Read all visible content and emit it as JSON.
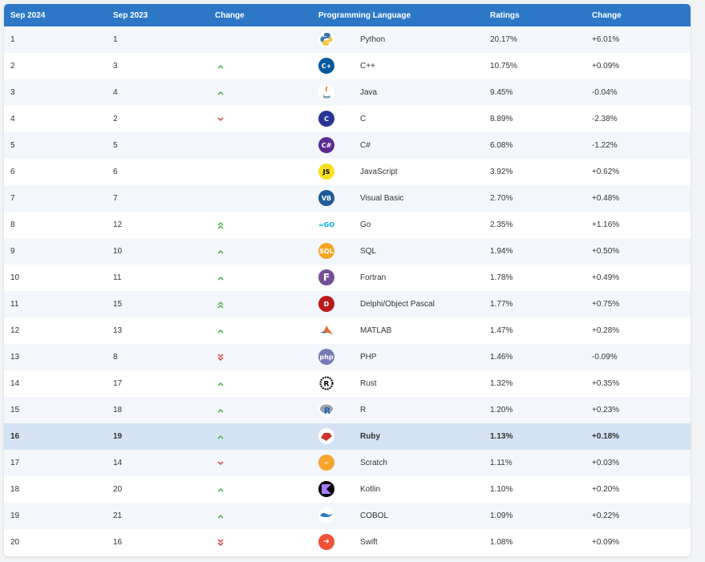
{
  "header": {
    "col1": "Sep 2024",
    "col2": "Sep 2023",
    "col3": "Change",
    "col4": "Programming Language",
    "col5": "Ratings",
    "col6": "Change"
  },
  "colors": {
    "header_bg": "#2d78c6",
    "up": "#5cb85c",
    "down": "#d9534f",
    "highlight_row": "#d3e3f4"
  },
  "rows": [
    {
      "rank": "1",
      "prev": "1",
      "change": "none",
      "language": "Python",
      "icon": "python-icon",
      "rating": "20.17%",
      "delta": "+6.01%"
    },
    {
      "rank": "2",
      "prev": "3",
      "change": "up",
      "language": "C++",
      "icon": "cplusplus-icon",
      "rating": "10.75%",
      "delta": "+0.09%"
    },
    {
      "rank": "3",
      "prev": "4",
      "change": "up",
      "language": "Java",
      "icon": "java-icon",
      "rating": "9.45%",
      "delta": "-0.04%"
    },
    {
      "rank": "4",
      "prev": "2",
      "change": "down",
      "language": "C",
      "icon": "c-icon",
      "rating": "8.89%",
      "delta": "-2.38%"
    },
    {
      "rank": "5",
      "prev": "5",
      "change": "none",
      "language": "C#",
      "icon": "csharp-icon",
      "rating": "6.08%",
      "delta": "-1.22%"
    },
    {
      "rank": "6",
      "prev": "6",
      "change": "none",
      "language": "JavaScript",
      "icon": "javascript-icon",
      "rating": "3.92%",
      "delta": "+0.62%"
    },
    {
      "rank": "7",
      "prev": "7",
      "change": "none",
      "language": "Visual Basic",
      "icon": "visual-basic-icon",
      "rating": "2.70%",
      "delta": "+0.48%"
    },
    {
      "rank": "8",
      "prev": "12",
      "change": "up2",
      "language": "Go",
      "icon": "go-icon",
      "rating": "2.35%",
      "delta": "+1.16%"
    },
    {
      "rank": "9",
      "prev": "10",
      "change": "up",
      "language": "SQL",
      "icon": "sql-icon",
      "rating": "1.94%",
      "delta": "+0.50%"
    },
    {
      "rank": "10",
      "prev": "11",
      "change": "up",
      "language": "Fortran",
      "icon": "fortran-icon",
      "rating": "1.78%",
      "delta": "+0.49%"
    },
    {
      "rank": "11",
      "prev": "15",
      "change": "up2",
      "language": "Delphi/Object Pascal",
      "icon": "delphi-icon",
      "rating": "1.77%",
      "delta": "+0.75%"
    },
    {
      "rank": "12",
      "prev": "13",
      "change": "up",
      "language": "MATLAB",
      "icon": "matlab-icon",
      "rating": "1.47%",
      "delta": "+0.28%"
    },
    {
      "rank": "13",
      "prev": "8",
      "change": "down2",
      "language": "PHP",
      "icon": "php-icon",
      "rating": "1.46%",
      "delta": "-0.09%"
    },
    {
      "rank": "14",
      "prev": "17",
      "change": "up",
      "language": "Rust",
      "icon": "rust-icon",
      "rating": "1.32%",
      "delta": "+0.35%"
    },
    {
      "rank": "15",
      "prev": "18",
      "change": "up",
      "language": "R",
      "icon": "r-icon",
      "rating": "1.20%",
      "delta": "+0.23%"
    },
    {
      "rank": "16",
      "prev": "19",
      "change": "up",
      "language": "Ruby",
      "icon": "ruby-icon",
      "rating": "1.13%",
      "delta": "+0.18%",
      "highlight": true
    },
    {
      "rank": "17",
      "prev": "14",
      "change": "down",
      "language": "Scratch",
      "icon": "scratch-icon",
      "rating": "1.11%",
      "delta": "+0.03%"
    },
    {
      "rank": "18",
      "prev": "20",
      "change": "up",
      "language": "Kotlin",
      "icon": "kotlin-icon",
      "rating": "1.10%",
      "delta": "+0.20%"
    },
    {
      "rank": "19",
      "prev": "21",
      "change": "up",
      "language": "COBOL",
      "icon": "cobol-icon",
      "rating": "1.09%",
      "delta": "+0.22%"
    },
    {
      "rank": "20",
      "prev": "16",
      "change": "down2",
      "language": "Swift",
      "icon": "swift-icon",
      "rating": "1.08%",
      "delta": "+0.09%"
    }
  ]
}
